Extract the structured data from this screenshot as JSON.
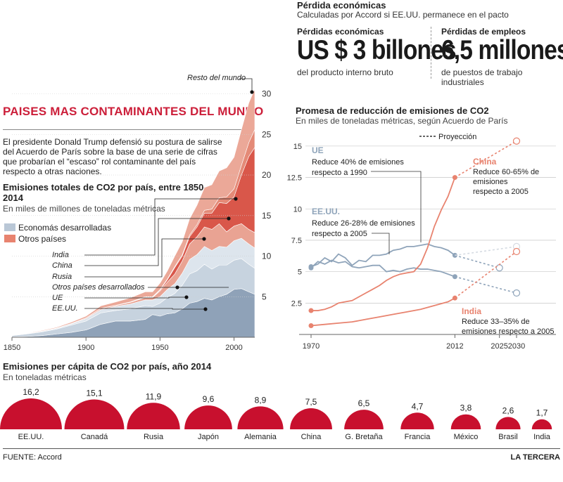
{
  "economic": {
    "title": "Pérdida económicas",
    "subtitle": "Calculadas por Accord si EE.UU. permanece en el pacto",
    "items": [
      {
        "label": "Pérdidas económicas",
        "value": "US $ 3 billones",
        "desc": "del producto interno bruto"
      },
      {
        "label": "Pérdidas de empleos",
        "value": "6,5 millones",
        "desc": "de puestos de trabajo industriales"
      }
    ]
  },
  "main_title": "PAISES MAS CONTAMINANTES DEL MUNDO",
  "intro": "El presidente Donald Trump defensió su postura de salirse del Acuerdo de París sobre la base de una serie de cifras que probarían el “escaso” rol contaminante del país respecto a otras naciones.",
  "chart_data": [
    {
      "type": "area",
      "title": "Emisiones totales de CO2 por país, entre 1850–2014",
      "subtitle": "En miles de millones de toneladas métricas",
      "xlim": [
        1850,
        2014
      ],
      "ylim": [
        0,
        33
      ],
      "x_ticks": [
        1850,
        1900,
        1950,
        2000
      ],
      "y_ticks": [
        5,
        10,
        15,
        20,
        25,
        30
      ],
      "legend": [
        {
          "name": "Economás desarrolladas",
          "color": "#b9c7d6"
        },
        {
          "name": "Otros países",
          "color": "#e8836f"
        }
      ],
      "x": [
        1850,
        1860,
        1870,
        1880,
        1890,
        1900,
        1910,
        1920,
        1930,
        1940,
        1945,
        1950,
        1955,
        1960,
        1965,
        1970,
        1975,
        1980,
        1985,
        1990,
        1995,
        2000,
        2005,
        2010,
        2014
      ],
      "series": [
        {
          "name": "EE.UU.",
          "color": "#8fa2b8",
          "values": [
            0.05,
            0.1,
            0.2,
            0.4,
            0.6,
            0.9,
            1.6,
            2.0,
            2.0,
            2.2,
            2.8,
            2.6,
            2.9,
            3.0,
            3.5,
            4.2,
            4.4,
            4.8,
            4.6,
            5.0,
            5.3,
            5.9,
            6.0,
            5.6,
            5.3
          ]
        },
        {
          "name": "UE",
          "color": "#c7d3df",
          "values": [
            0.15,
            0.3,
            0.45,
            0.6,
            0.9,
            1.1,
            1.4,
            1.3,
            1.5,
            1.7,
            1.0,
            1.6,
            2.0,
            2.4,
            2.9,
            3.6,
            3.8,
            4.2,
            3.8,
            3.9,
            3.6,
            3.6,
            3.7,
            3.4,
            3.2
          ]
        },
        {
          "name": "Otros países desarrollados",
          "color": "#dde5ed",
          "values": [
            0.02,
            0.05,
            0.08,
            0.1,
            0.15,
            0.3,
            0.4,
            0.5,
            0.6,
            0.7,
            0.8,
            0.8,
            1.0,
            1.2,
            1.5,
            1.8,
            2.0,
            2.2,
            2.3,
            2.3,
            2.2,
            2.4,
            2.5,
            2.5,
            2.5
          ]
        },
        {
          "name": "Rusia",
          "color": "#e9a393",
          "values": [
            0.0,
            0.0,
            0.02,
            0.03,
            0.05,
            0.1,
            0.15,
            0.1,
            0.2,
            0.3,
            0.3,
            0.7,
            0.9,
            1.2,
            1.5,
            1.9,
            2.2,
            2.4,
            2.6,
            2.8,
            1.9,
            1.8,
            1.8,
            1.8,
            1.9
          ]
        },
        {
          "name": "China",
          "color": "#d9574a",
          "values": [
            0.0,
            0.0,
            0.0,
            0.0,
            0.0,
            0.0,
            0.0,
            0.02,
            0.03,
            0.05,
            0.05,
            0.1,
            0.3,
            0.8,
            0.6,
            0.9,
            1.2,
            1.7,
            2.0,
            2.6,
            3.5,
            3.6,
            6.0,
            9.0,
            10.5
          ]
        },
        {
          "name": "India",
          "color": "#e48a77",
          "values": [
            0.0,
            0.0,
            0.0,
            0.0,
            0.0,
            0.0,
            0.02,
            0.02,
            0.03,
            0.05,
            0.05,
            0.07,
            0.09,
            0.12,
            0.16,
            0.2,
            0.28,
            0.35,
            0.5,
            0.6,
            0.8,
            1.0,
            1.2,
            1.7,
            2.2
          ]
        },
        {
          "name": "Resto del mundo",
          "color": "#eba898",
          "values": [
            0.03,
            0.05,
            0.08,
            0.1,
            0.15,
            0.2,
            0.3,
            0.4,
            0.5,
            0.6,
            0.6,
            0.8,
            1.0,
            1.3,
            1.6,
            2.0,
            2.4,
            2.8,
            3.0,
            3.3,
            3.6,
            3.9,
            4.4,
            4.9,
            5.0
          ]
        }
      ],
      "labels": [
        "Resto del mundo",
        "India",
        "China",
        "Rusia",
        "Otros países desarrollados",
        "UE",
        "EE.UU."
      ]
    },
    {
      "type": "line",
      "title": "Promesa de reducción de emisiones de CO2",
      "subtitle": "En miles de toneladas métricas, según Acuerdo de París",
      "xlim": [
        1967,
        2031
      ],
      "ylim": [
        0,
        16
      ],
      "x_ticks": [
        1970,
        2012,
        2025,
        2030
      ],
      "y_ticks": [
        2.5,
        5,
        7.5,
        10,
        12.5,
        15
      ],
      "y_tick_labels": [
        "2.5",
        "5",
        "7.5",
        "10",
        "12.5",
        "15"
      ],
      "legend": [
        {
          "name": "Proyección"
        }
      ],
      "series": [
        {
          "name": "UE",
          "color": "#8fa4ba",
          "x": [
            1970,
            1972,
            1974,
            1976,
            1978,
            1980,
            1982,
            1984,
            1986,
            1988,
            1990,
            1992,
            1994,
            1996,
            1998,
            2000,
            2002,
            2004,
            2006,
            2008,
            2010,
            2012
          ],
          "values": [
            5.3,
            5.8,
            5.6,
            5.9,
            5.7,
            5.8,
            5.4,
            5.3,
            5.4,
            5.5,
            5.5,
            5.0,
            5.1,
            5.0,
            5.2,
            5.3,
            5.2,
            5.2,
            5.1,
            5.0,
            4.8,
            4.6
          ],
          "projection": {
            "x": [
              2012,
              2030
            ],
            "values": [
              4.6,
              3.3
            ]
          },
          "note": "Reduce 40% de emisiones respecto a 1990"
        },
        {
          "name": "EE.UU.",
          "color": "#8fa4ba",
          "x": [
            1970,
            1972,
            1974,
            1976,
            1978,
            1980,
            1982,
            1984,
            1986,
            1988,
            1990,
            1992,
            1994,
            1996,
            1998,
            2000,
            2002,
            2004,
            2006,
            2008,
            2010,
            2012
          ],
          "values": [
            5.4,
            5.6,
            6.1,
            5.8,
            6.4,
            6.1,
            5.5,
            5.9,
            5.8,
            6.3,
            6.3,
            6.4,
            6.7,
            6.8,
            7.0,
            7.0,
            7.1,
            7.2,
            7.0,
            6.9,
            6.7,
            6.3
          ],
          "projection": {
            "x": [
              2012,
              2025
            ],
            "values": [
              6.3,
              5.3
            ]
          },
          "projection_alt": {
            "x": [
              2012,
              2030
            ],
            "values": [
              6.3,
              7.0
            ]
          },
          "note": "Reduce 26-28% de emisiones respecto a 2005"
        },
        {
          "name": "China",
          "color": "#e8836f",
          "x": [
            1970,
            1972,
            1974,
            1976,
            1978,
            1980,
            1982,
            1984,
            1986,
            1988,
            1990,
            1992,
            1994,
            1996,
            1998,
            2000,
            2002,
            2004,
            2006,
            2008,
            2010,
            2012
          ],
          "values": [
            1.9,
            1.9,
            2.0,
            2.2,
            2.5,
            2.6,
            2.7,
            3.0,
            3.3,
            3.6,
            3.9,
            4.3,
            4.6,
            4.8,
            4.9,
            5.0,
            5.6,
            6.9,
            8.6,
            9.9,
            11.0,
            12.5
          ],
          "projection": {
            "x": [
              2012,
              2030
            ],
            "values": [
              12.5,
              15.4
            ]
          },
          "note": "Reduce 60-65% de emisiones respecto a 2005"
        },
        {
          "name": "India",
          "color": "#e8836f",
          "x": [
            1970,
            1974,
            1978,
            1982,
            1986,
            1990,
            1994,
            1998,
            2002,
            2006,
            2010,
            2012
          ],
          "values": [
            0.7,
            0.8,
            0.9,
            1.0,
            1.2,
            1.4,
            1.6,
            1.8,
            2.0,
            2.3,
            2.6,
            2.9
          ],
          "projection": {
            "x": [
              2012,
              2030
            ],
            "values": [
              2.9,
              6.6
            ]
          },
          "note": "Reduce 33–35% de emisiones respecto a 2005"
        }
      ]
    },
    {
      "type": "bubble",
      "title": "Emisiones per cápita de CO2 por país, año 2014",
      "subtitle": "En toneladas métricas",
      "categories": [
        "EE.UU.",
        "Canadá",
        "Rusia",
        "Japón",
        "Alemania",
        "China",
        "G. Bretaña",
        "Francia",
        "México",
        "Brasil",
        "India"
      ],
      "values": [
        16.2,
        15.1,
        11.9,
        9.6,
        8.9,
        7.5,
        6.5,
        4.7,
        3.8,
        2.6,
        1.7
      ],
      "value_labels": [
        "16,2",
        "15,1",
        "11,9",
        "9,6",
        "8,9",
        "7,5",
        "6,5",
        "4,7",
        "3,8",
        "2,6",
        "1,7"
      ],
      "color": "#c8102e"
    }
  ],
  "footer": {
    "source": "FUENTE: Accord",
    "brand": "LA TERCERA"
  }
}
